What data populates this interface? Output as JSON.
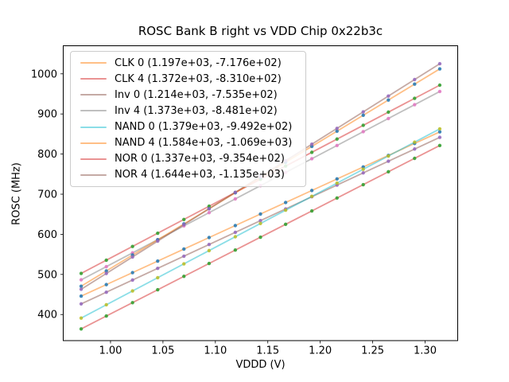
{
  "chart_data": {
    "type": "scatter",
    "title": "ROSC Bank B right vs VDD Chip 0x22b3c",
    "xlabel": "VDDD (V)",
    "ylabel": "ROSC (MHz)",
    "xlim": [
      0.9549,
      1.3311
    ],
    "ylim": [
      335,
      1070
    ],
    "grid": false,
    "legend_position": "upper left",
    "xticks": [
      {
        "value": 1.0,
        "label": "1.00"
      },
      {
        "value": 1.05,
        "label": "1.05"
      },
      {
        "value": 1.1,
        "label": "1.10"
      },
      {
        "value": 1.15,
        "label": "1.15"
      },
      {
        "value": 1.2,
        "label": "1.20"
      },
      {
        "value": 1.25,
        "label": "1.25"
      },
      {
        "value": 1.3,
        "label": "1.30"
      }
    ],
    "yticks": [
      {
        "value": 400,
        "label": "400"
      },
      {
        "value": 500,
        "label": "500"
      },
      {
        "value": 600,
        "label": "600"
      },
      {
        "value": 700,
        "label": "700"
      },
      {
        "value": 800,
        "label": "800"
      },
      {
        "value": 900,
        "label": "900"
      },
      {
        "value": 1000,
        "label": "1000"
      }
    ],
    "x": [
      0.972,
      0.996,
      1.021,
      1.045,
      1.07,
      1.094,
      1.119,
      1.143,
      1.167,
      1.192,
      1.216,
      1.241,
      1.265,
      1.29,
      1.314
    ],
    "series": [
      {
        "name": "CLK 0",
        "legend_label": "CLK 0 (1.197e+03, -7.176e+02)",
        "slope": 1197,
        "intercept": -717.6,
        "line_color": "#ff7f0e",
        "marker_color": "#1f77b4",
        "y": [
          445.9,
          474.6,
          504.5,
          533.3,
          563.2,
          591.9,
          621.8,
          650.6,
          679.3,
          709.2,
          738.0,
          767.9,
          796.6,
          826.5,
          855.3
        ]
      },
      {
        "name": "CLK 4",
        "legend_label": "CLK 4 (1.372e+03, -8.310e+02)",
        "slope": 1372,
        "intercept": -831.0,
        "line_color": "#d62728",
        "marker_color": "#2ca02c",
        "y": [
          502.6,
          535.5,
          569.8,
          602.7,
          637.0,
          670.0,
          704.3,
          737.2,
          770.1,
          804.4,
          837.4,
          871.7,
          904.6,
          938.9,
          971.8
        ]
      },
      {
        "name": "Inv 0",
        "legend_label": "Inv 0 (1.214e+03, -7.535e+02)",
        "slope": 1214,
        "intercept": -753.5,
        "line_color": "#8c564b",
        "marker_color": "#9467bd",
        "y": [
          426.5,
          455.6,
          486.0,
          515.1,
          545.5,
          574.6,
          605.0,
          634.1,
          663.2,
          693.6,
          722.7,
          753.1,
          782.2,
          812.6,
          841.7
        ]
      },
      {
        "name": "Inv 4",
        "legend_label": "Inv 4 (1.373e+03, -8.481e+02)",
        "slope": 1373,
        "intercept": -848.1,
        "line_color": "#7f7f7f",
        "marker_color": "#e377c2",
        "y": [
          486.5,
          519.4,
          553.7,
          586.7,
          621.0,
          654.0,
          688.3,
          721.2,
          754.2,
          788.5,
          821.5,
          855.8,
          888.7,
          923.1,
          956.0
        ]
      },
      {
        "name": "NAND 0",
        "legend_label": "NAND 0 (1.379e+03, -9.492e+02)",
        "slope": 1379,
        "intercept": -949.2,
        "line_color": "#17becf",
        "marker_color": "#bcbd22",
        "y": [
          391.2,
          424.3,
          458.8,
          491.9,
          526.3,
          559.4,
          593.9,
          627.0,
          660.1,
          694.6,
          727.7,
          762.1,
          795.2,
          829.7,
          862.8
        ]
      },
      {
        "name": "NAND 4",
        "legend_label": "NAND 4 (1.584e+03, -1.069e+03)",
        "slope": 1584,
        "intercept": -1069.0,
        "line_color": "#ff7f0e",
        "marker_color": "#1f77b4",
        "y": [
          470.6,
          508.7,
          548.3,
          586.3,
          625.9,
          663.9,
          703.5,
          741.5,
          779.5,
          819.1,
          857.1,
          896.7,
          934.8,
          974.4,
          1012.4
        ]
      },
      {
        "name": "NOR 0",
        "legend_label": "NOR 0 (1.337e+03, -9.354e+02)",
        "slope": 1337,
        "intercept": -935.4,
        "line_color": "#d62728",
        "marker_color": "#2ca02c",
        "y": [
          364.2,
          396.3,
          429.7,
          461.8,
          495.2,
          527.3,
          560.7,
          592.8,
          624.9,
          658.3,
          690.4,
          723.8,
          755.9,
          789.3,
          821.4
        ]
      },
      {
        "name": "NOR 4",
        "legend_label": "NOR 4 (1.644e+03, -1.135e+03)",
        "slope": 1644,
        "intercept": -1135.0,
        "line_color": "#8c564b",
        "marker_color": "#9467bd",
        "y": [
          463.0,
          502.4,
          543.5,
          583.0,
          624.1,
          663.5,
          704.6,
          744.1,
          783.5,
          824.6,
          864.1,
          905.2,
          944.7,
          985.8,
          1025.2
        ]
      }
    ]
  }
}
